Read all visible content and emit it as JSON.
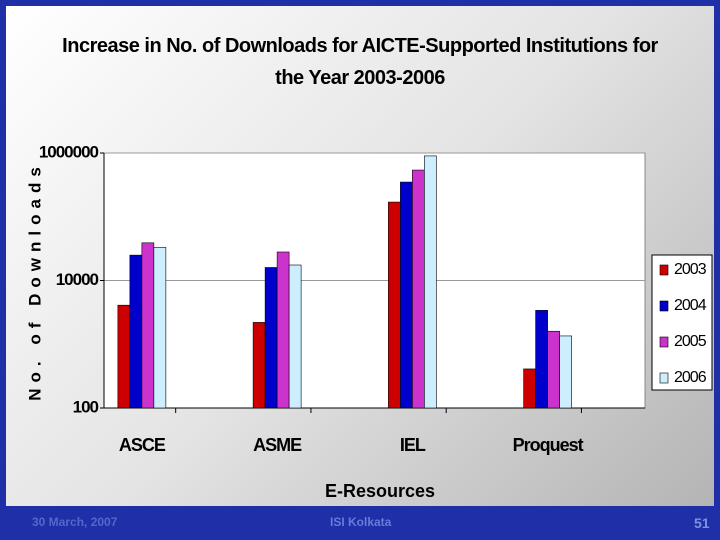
{
  "chart_data": {
    "type": "bar",
    "title": "Increase in No. of Downloads for AICTE-Supported Institutions for the Year 2003-2006",
    "x_label": "E-Resources",
    "y_label": "No. of Downloads",
    "categories": [
      "ASCE",
      "ASME",
      "IEL",
      "Proquest"
    ],
    "series": [
      {
        "name": "2003",
        "color": "#cc0000",
        "values": [
          4100,
          2200,
          170000,
          410
        ]
      },
      {
        "name": "2004",
        "color": "#0000cc",
        "values": [
          25000,
          16000,
          350000,
          3400
        ]
      },
      {
        "name": "2005",
        "color": "#cc33cc",
        "values": [
          39000,
          28000,
          540000,
          1600
        ]
      },
      {
        "name": "2006",
        "color": "#cceeff",
        "values": [
          33000,
          17500,
          900000,
          1350
        ]
      }
    ],
    "log_scale": true,
    "ylim": [
      100,
      1000000
    ],
    "yticks": [
      100,
      10000,
      1000000
    ],
    "grid": true,
    "legend": "right"
  },
  "footer": {
    "date": "30 March, 2007",
    "organization": "ISI Kolkata",
    "page": "51"
  }
}
